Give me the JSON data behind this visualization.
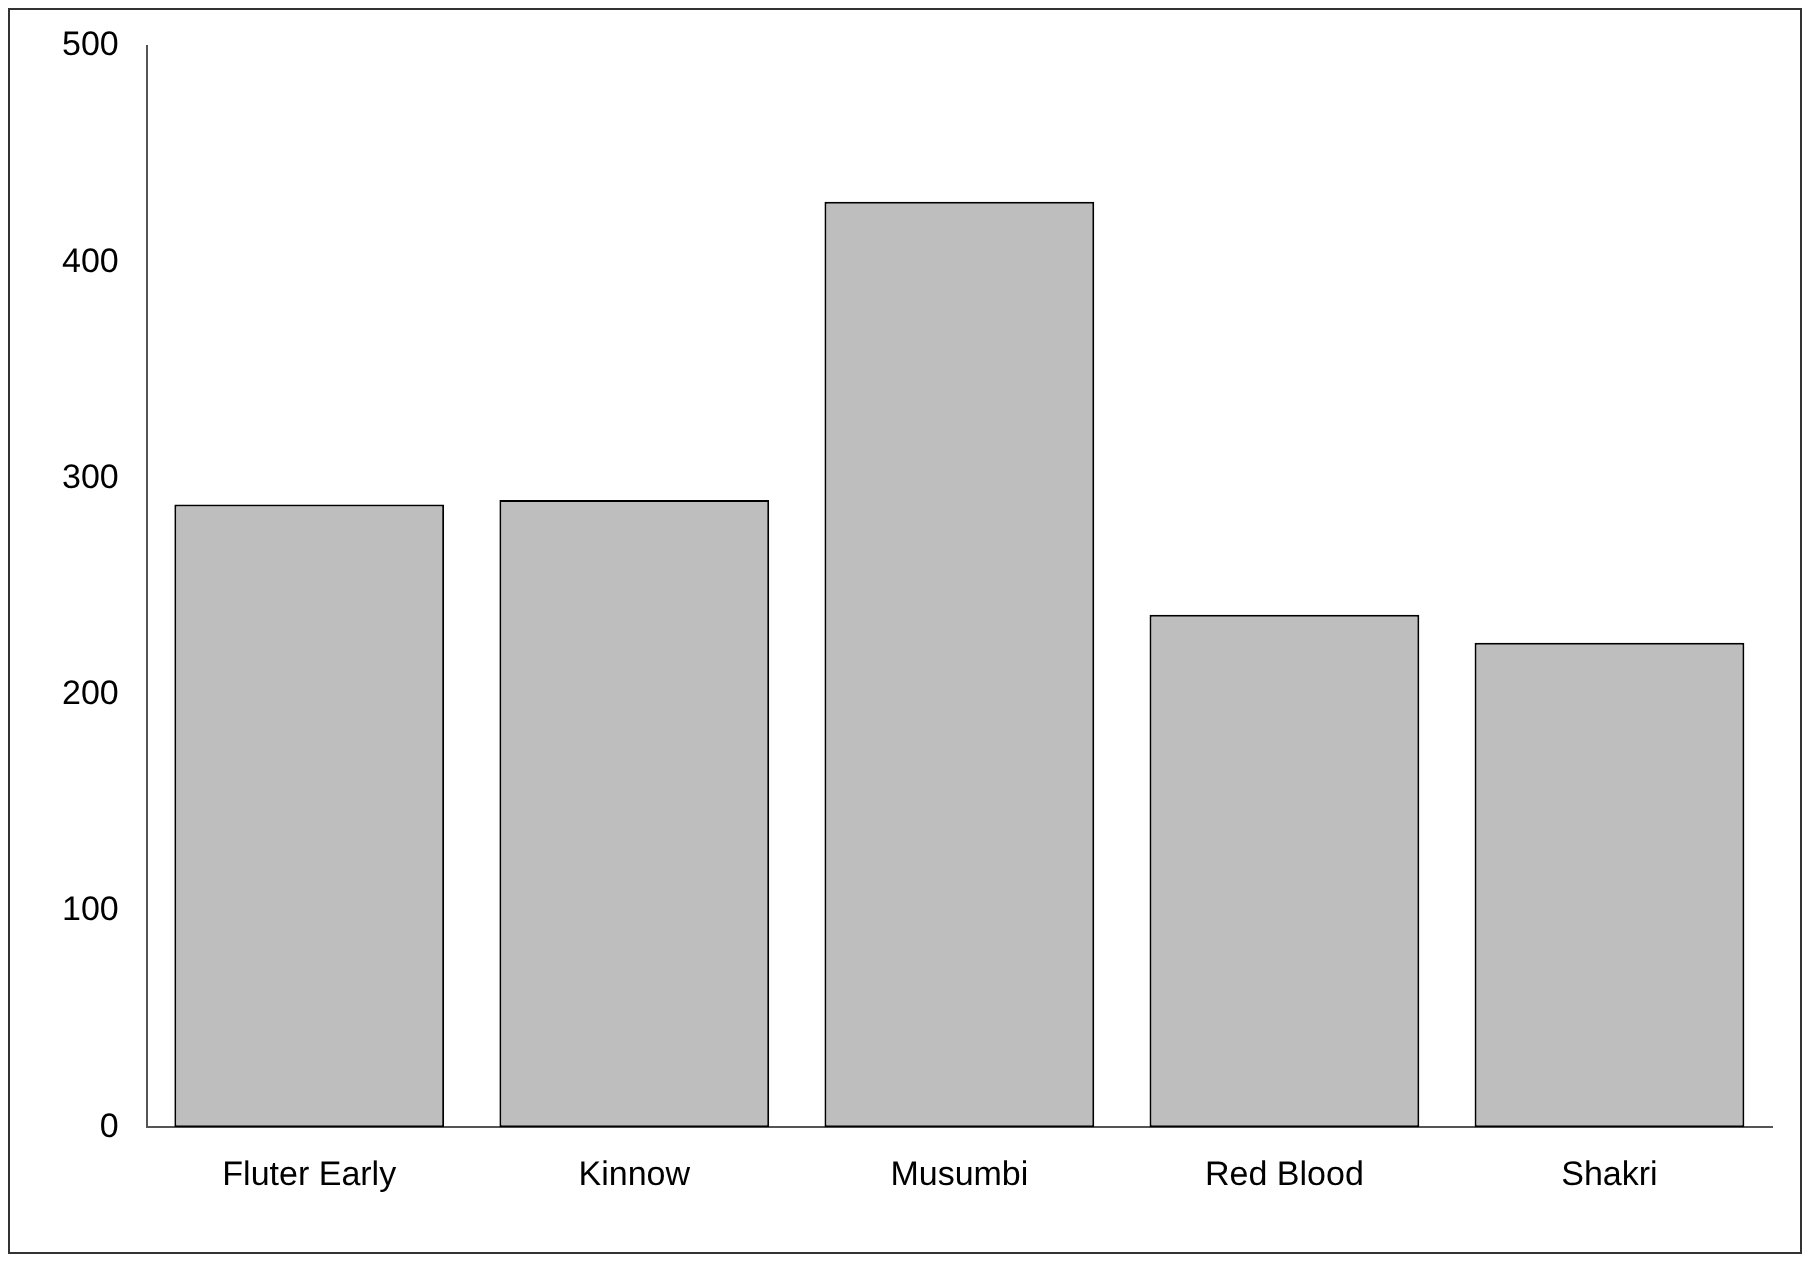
{
  "chart_data": {
    "type": "bar",
    "categories": [
      "Fluter Early",
      "Kinnow",
      "Musumbi",
      "Red Blood",
      "Shakri"
    ],
    "values": [
      288,
      290,
      428,
      237,
      224
    ],
    "color": "#bebebe",
    "ylim": [
      0,
      500
    ],
    "yticks": [
      0,
      100,
      200,
      300,
      400,
      500
    ],
    "grid": false
  }
}
